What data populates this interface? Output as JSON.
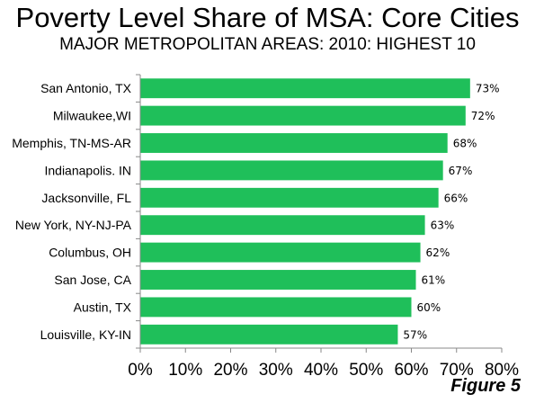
{
  "chart_data": {
    "type": "bar",
    "orientation": "horizontal",
    "title": "Poverty Level Share of MSA: Core Cities",
    "subtitle": "MAJOR METROPOLITAN AREAS: 2010: HIGHEST 10",
    "xlabel": "",
    "ylabel": "",
    "categories": [
      "San Antonio, TX",
      "Milwaukee,WI",
      "Memphis, TN-MS-AR",
      "Indianapolis. IN",
      "Jacksonville, FL",
      "New York, NY-NJ-PA",
      "Columbus, OH",
      "San Jose, CA",
      "Austin, TX",
      "Louisville, KY-IN"
    ],
    "values": [
      73,
      72,
      68,
      67,
      66,
      63,
      62,
      61,
      60,
      57
    ],
    "data_labels": [
      "73%",
      "72%",
      "68%",
      "67%",
      "66%",
      "63%",
      "62%",
      "61%",
      "60%",
      "57%"
    ],
    "xlim": [
      0,
      80
    ],
    "x_ticks": [
      0,
      10,
      20,
      30,
      40,
      50,
      60,
      70,
      80
    ],
    "x_tick_labels": [
      "0%",
      "10%",
      "20%",
      "30%",
      "40%",
      "50%",
      "60%",
      "70%",
      "80%"
    ],
    "grid": false,
    "legend": "none",
    "bar_color": "#1FBF5A",
    "axis_color": "#888888"
  },
  "figure_label": "Figure 5"
}
